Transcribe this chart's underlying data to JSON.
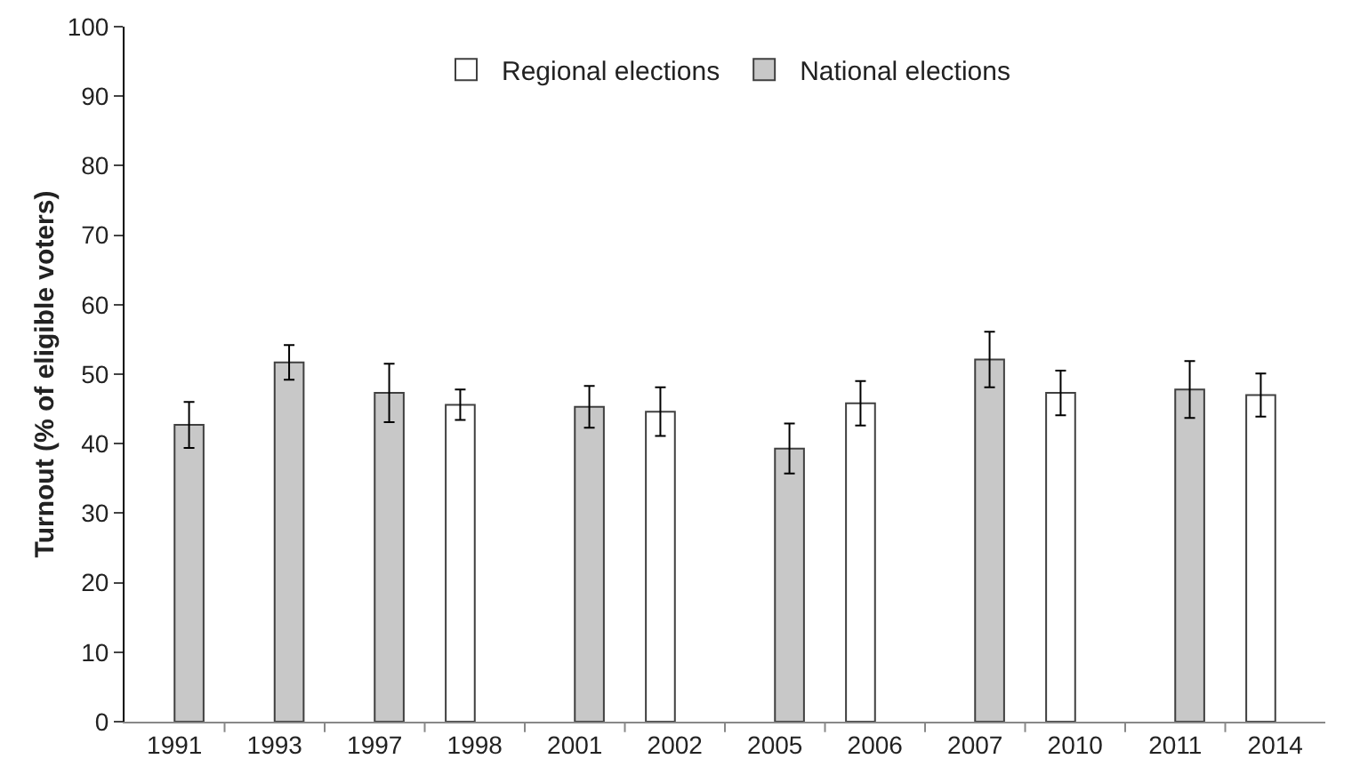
{
  "chart_data": {
    "type": "bar",
    "ylabel": "Turnout (% of eligible voters)",
    "categories": [
      "1991",
      "1993",
      "1997",
      "1998",
      "2001",
      "2002",
      "2005",
      "2006",
      "2007",
      "2010",
      "2011",
      "2014"
    ],
    "series": [
      {
        "name": "Regional elections",
        "color": "#ffffff",
        "values": [
          null,
          null,
          null,
          45.6,
          null,
          44.6,
          null,
          45.8,
          null,
          47.3,
          null,
          47.0
        ],
        "errors": [
          null,
          null,
          null,
          2.2,
          null,
          3.5,
          null,
          3.2,
          null,
          3.2,
          null,
          3.1
        ]
      },
      {
        "name": "National elections",
        "color": "#c8c8c8",
        "values": [
          42.7,
          51.7,
          47.3,
          null,
          45.3,
          null,
          39.3,
          null,
          52.1,
          null,
          47.8,
          null
        ],
        "errors": [
          3.3,
          2.5,
          4.2,
          null,
          3.0,
          null,
          3.6,
          null,
          4.0,
          null,
          4.1,
          null
        ]
      }
    ],
    "ylim": [
      0,
      100
    ],
    "yticks": [
      0,
      10,
      20,
      30,
      40,
      50,
      60,
      70,
      80,
      90,
      100
    ],
    "grid": false,
    "legend": "top"
  }
}
